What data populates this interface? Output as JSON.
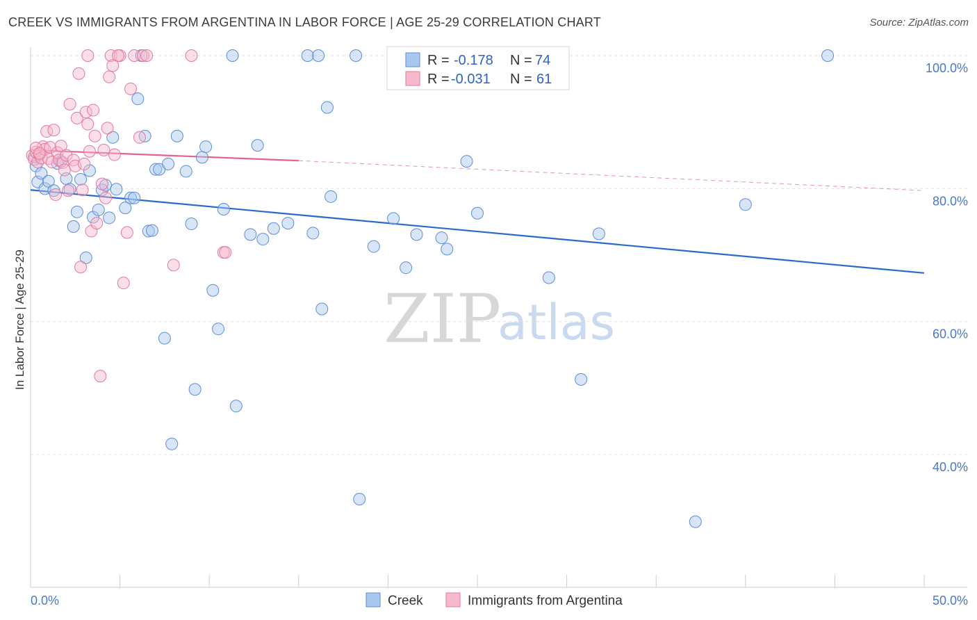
{
  "header": {
    "title": "CREEK VS IMMIGRANTS FROM ARGENTINA IN LABOR FORCE | AGE 25-29 CORRELATION CHART",
    "source": "Source: ZipAtlas.com"
  },
  "watermark": {
    "zip": "ZIP",
    "atlas": "atlas"
  },
  "legend": {
    "rows": [
      {
        "r_label": "R =",
        "r_value": "-0.178",
        "n_label": "N =",
        "n_value": "74"
      },
      {
        "r_label": "R =",
        "r_value": "-0.031",
        "n_label": "N =",
        "n_value": "61"
      }
    ]
  },
  "chart_data": {
    "type": "scatter",
    "title": "CREEK VS IMMIGRANTS FROM ARGENTINA IN LABOR FORCE | AGE 25-29 CORRELATION CHART",
    "xlabel": "",
    "ylabel": "In Labor Force | Age 25-29",
    "xlim": [
      0,
      50
    ],
    "ylim": [
      20,
      102
    ],
    "x_tick_labels": [
      {
        "value": 0,
        "label": "0.0%"
      },
      {
        "value": 50,
        "label": "50.0%"
      }
    ],
    "y_tick_labels": [
      {
        "value": 100,
        "label": "100.0%"
      },
      {
        "value": 80,
        "label": "80.0%"
      },
      {
        "value": 60,
        "label": "60.0%"
      },
      {
        "value": 40,
        "label": "40.0%"
      }
    ],
    "grid": true,
    "legend_position": "top-center",
    "colors": {
      "creek_fill": "#a9c6ee",
      "creek_stroke": "#5a8ed8",
      "creek_line": "#2a6acd",
      "argentina_fill": "#f6b8cc",
      "argentina_stroke": "#e4799c",
      "argentina_line": "#e4628f"
    },
    "series": [
      {
        "name": "Creek",
        "r": -0.178,
        "n": 74,
        "trend": {
          "x0": 0,
          "y0": 79.8,
          "x1": 50,
          "y1": 67.3
        },
        "points": [
          [
            0.3,
            83.4
          ],
          [
            0.4,
            81.0
          ],
          [
            0.6,
            82.3
          ],
          [
            0.8,
            80.0
          ],
          [
            1.0,
            81.1
          ],
          [
            1.3,
            79.7
          ],
          [
            1.5,
            83.8
          ],
          [
            1.7,
            84.1
          ],
          [
            2.0,
            81.5
          ],
          [
            2.2,
            79.9
          ],
          [
            2.4,
            74.3
          ],
          [
            2.6,
            76.5
          ],
          [
            2.8,
            81.4
          ],
          [
            3.1,
            69.6
          ],
          [
            3.3,
            82.7
          ],
          [
            3.5,
            75.7
          ],
          [
            3.8,
            76.8
          ],
          [
            4.0,
            79.8
          ],
          [
            4.2,
            80.5
          ],
          [
            4.4,
            75.6
          ],
          [
            4.6,
            87.7
          ],
          [
            4.8,
            79.9
          ],
          [
            5.3,
            77.1
          ],
          [
            5.6,
            78.6
          ],
          [
            5.8,
            78.6
          ],
          [
            6.0,
            93.5
          ],
          [
            6.2,
            100.0
          ],
          [
            6.4,
            87.9
          ],
          [
            6.6,
            73.6
          ],
          [
            6.8,
            73.7
          ],
          [
            7.0,
            82.9
          ],
          [
            7.2,
            82.9
          ],
          [
            7.5,
            57.5
          ],
          [
            7.7,
            83.7
          ],
          [
            7.9,
            41.6
          ],
          [
            8.2,
            87.9
          ],
          [
            8.7,
            82.6
          ],
          [
            9.0,
            74.7
          ],
          [
            9.2,
            49.8
          ],
          [
            9.6,
            84.7
          ],
          [
            9.8,
            86.3
          ],
          [
            10.2,
            64.7
          ],
          [
            10.5,
            58.9
          ],
          [
            10.8,
            76.9
          ],
          [
            11.3,
            100.0
          ],
          [
            11.5,
            47.3
          ],
          [
            12.3,
            73.1
          ],
          [
            12.7,
            86.5
          ],
          [
            13.0,
            72.4
          ],
          [
            13.6,
            74.0
          ],
          [
            14.4,
            74.8
          ],
          [
            15.5,
            100.0
          ],
          [
            15.8,
            73.3
          ],
          [
            16.1,
            100.0
          ],
          [
            16.3,
            61.9
          ],
          [
            16.6,
            92.2
          ],
          [
            16.8,
            78.8
          ],
          [
            18.2,
            100.0
          ],
          [
            18.4,
            33.3
          ],
          [
            19.2,
            71.3
          ],
          [
            20.3,
            75.5
          ],
          [
            21.0,
            68.1
          ],
          [
            21.6,
            73.1
          ],
          [
            23.0,
            72.6
          ],
          [
            23.3,
            70.9
          ],
          [
            24.4,
            84.1
          ],
          [
            25.0,
            76.3
          ],
          [
            29.0,
            66.6
          ],
          [
            30.8,
            51.3
          ],
          [
            31.8,
            73.2
          ],
          [
            37.2,
            29.9
          ],
          [
            40.0,
            77.6
          ],
          [
            44.6,
            100.0
          ],
          [
            0.2,
            84.8
          ]
        ]
      },
      {
        "name": "Immigrants from Argentina",
        "r": -0.031,
        "n": 61,
        "trend": {
          "x0": 0,
          "y0": 85.8,
          "x1": 15,
          "y1": 84.2,
          "dash_to_x": 50,
          "dash_to_y": 79.7
        },
        "points": [
          [
            0.1,
            85.0
          ],
          [
            0.2,
            84.4
          ],
          [
            0.3,
            85.5
          ],
          [
            0.4,
            84.0
          ],
          [
            0.5,
            85.1
          ],
          [
            0.6,
            84.6
          ],
          [
            0.7,
            86.3
          ],
          [
            0.8,
            85.9
          ],
          [
            0.9,
            88.6
          ],
          [
            1.0,
            84.5
          ],
          [
            1.1,
            86.2
          ],
          [
            1.2,
            84.0
          ],
          [
            1.3,
            88.8
          ],
          [
            1.4,
            79.1
          ],
          [
            1.5,
            85.4
          ],
          [
            1.6,
            84.3
          ],
          [
            1.7,
            86.4
          ],
          [
            1.8,
            83.9
          ],
          [
            1.9,
            82.8
          ],
          [
            2.0,
            85.0
          ],
          [
            2.1,
            79.7
          ],
          [
            2.2,
            92.7
          ],
          [
            2.4,
            84.3
          ],
          [
            2.5,
            83.4
          ],
          [
            2.6,
            90.6
          ],
          [
            2.7,
            97.3
          ],
          [
            2.8,
            68.2
          ],
          [
            2.9,
            79.8
          ],
          [
            3.0,
            83.7
          ],
          [
            3.1,
            91.5
          ],
          [
            3.2,
            89.7
          ],
          [
            3.3,
            85.6
          ],
          [
            3.4,
            73.6
          ],
          [
            3.5,
            91.8
          ],
          [
            3.6,
            87.9
          ],
          [
            3.7,
            74.8
          ],
          [
            3.9,
            51.8
          ],
          [
            4.0,
            80.7
          ],
          [
            4.1,
            85.8
          ],
          [
            4.2,
            78.6
          ],
          [
            4.3,
            89.1
          ],
          [
            4.4,
            96.8
          ],
          [
            4.5,
            100.0
          ],
          [
            4.6,
            98.5
          ],
          [
            4.7,
            85.1
          ],
          [
            5.0,
            100.0
          ],
          [
            5.2,
            65.8
          ],
          [
            5.4,
            73.4
          ],
          [
            5.6,
            95.0
          ],
          [
            5.8,
            100.0
          ],
          [
            6.1,
            87.7
          ],
          [
            6.3,
            100.0
          ],
          [
            6.5,
            100.0
          ],
          [
            8.0,
            68.5
          ],
          [
            9.0,
            100.0
          ],
          [
            10.8,
            70.4
          ],
          [
            10.9,
            70.4
          ],
          [
            0.3,
            86.1
          ],
          [
            0.5,
            85.3
          ],
          [
            4.9,
            100.0
          ],
          [
            3.2,
            100.0
          ]
        ]
      }
    ]
  },
  "bottom_legend": {
    "items": [
      {
        "label": "Creek"
      },
      {
        "label": "Immigrants from Argentina"
      }
    ]
  }
}
